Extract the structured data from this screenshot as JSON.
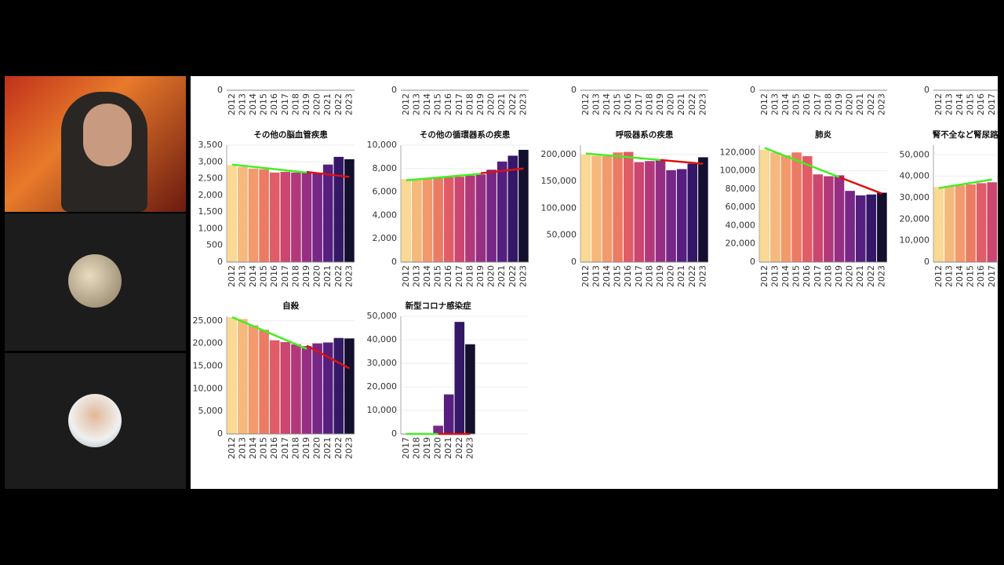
{
  "chart_data": [
    {
      "type": "bar",
      "categories": [
        "2012",
        "2013",
        "2014",
        "2015",
        "2016",
        "2017",
        "2018",
        "2019",
        "2020",
        "2021",
        "2022",
        "2023"
      ],
      "yticks": [
        0
      ]
    },
    {
      "type": "bar",
      "categories": [
        "2012",
        "2013",
        "2014",
        "2015",
        "2016",
        "2017",
        "2018",
        "2019",
        "2020",
        "2021",
        "2022",
        "2023"
      ],
      "yticks": [
        0
      ]
    },
    {
      "type": "bar",
      "categories": [
        "2012",
        "2013",
        "2014",
        "2015",
        "2016",
        "2017",
        "2018",
        "2019",
        "2020",
        "2021",
        "2022",
        "2023"
      ],
      "yticks": [
        0
      ]
    },
    {
      "type": "bar",
      "categories": [
        "2012",
        "2013",
        "2014",
        "2015",
        "2016",
        "2017",
        "2018",
        "2019",
        "2020",
        "2021",
        "2022",
        "2023"
      ],
      "yticks": [
        0
      ]
    },
    {
      "type": "bar",
      "categories": [
        "2012",
        "2013",
        "2014",
        "2015",
        "2016",
        "2017"
      ],
      "yticks": [
        0
      ]
    },
    {
      "type": "bar",
      "title": "その他の脳血管疾患",
      "categories": [
        "2012",
        "2013",
        "2014",
        "2015",
        "2016",
        "2017",
        "2018",
        "2019",
        "2020",
        "2021",
        "2022",
        "2023"
      ],
      "values": [
        2900,
        2850,
        2800,
        2780,
        2680,
        2700,
        2680,
        2700,
        2680,
        2920,
        3150,
        3080
      ],
      "colors": [
        "#f9d993",
        "#f6b97c",
        "#f29a6b",
        "#ec7b63",
        "#e05c66",
        "#cc466f",
        "#b3387a",
        "#962e82",
        "#772786",
        "#561f7f",
        "#341767",
        "#13102e"
      ],
      "ylim": [
        0,
        3500
      ],
      "yticks": [
        0,
        500,
        {
          "value": 1000,
          "label": "1,000"
        },
        {
          "value": 1500,
          "label": "1,500"
        },
        {
          "value": 2000,
          "label": "2,000"
        },
        {
          "value": 2500,
          "label": "2,500"
        },
        {
          "value": 3000,
          "label": "3,000"
        },
        {
          "value": 3500,
          "label": "3,500"
        }
      ],
      "grid": true,
      "trends": [
        {
          "color": "#44ee22",
          "x": [
            "2012",
            "2019"
          ],
          "values": [
            2920,
            2680
          ]
        },
        {
          "color": "#dd1111",
          "x": [
            "2019",
            "2023"
          ],
          "values": [
            2700,
            2550
          ]
        }
      ]
    },
    {
      "type": "bar",
      "title": "その他の循環器系の疾患",
      "categories": [
        "2012",
        "2013",
        "2014",
        "2015",
        "2016",
        "2017",
        "2018",
        "2019",
        "2020",
        "2021",
        "2022",
        "2023"
      ],
      "values": [
        7100,
        7100,
        7150,
        7200,
        7250,
        7300,
        7400,
        7500,
        7900,
        8600,
        9100,
        9600
      ],
      "colors": [
        "#f9d993",
        "#f6b97c",
        "#f29a6b",
        "#ec7b63",
        "#e05c66",
        "#cc466f",
        "#b3387a",
        "#962e82",
        "#772786",
        "#561f7f",
        "#341767",
        "#13102e"
      ],
      "ylim": [
        0,
        10000
      ],
      "yticks": [
        0,
        {
          "value": 2000,
          "label": "2,000"
        },
        {
          "value": 4000,
          "label": "4,000"
        },
        {
          "value": 6000,
          "label": "6,000"
        },
        {
          "value": 8000,
          "label": "8,000"
        },
        {
          "value": 10000,
          "label": "10,000"
        }
      ],
      "grid": true,
      "trends": [
        {
          "color": "#44ee22",
          "x": [
            "2012",
            "2019"
          ],
          "values": [
            7000,
            7550
          ]
        },
        {
          "color": "#dd1111",
          "x": [
            "2019",
            "2023"
          ],
          "values": [
            7600,
            8000
          ]
        }
      ]
    },
    {
      "type": "bar",
      "title": "呼吸器系の疾患",
      "categories": [
        "2012",
        "2013",
        "2014",
        "2015",
        "2016",
        "2017",
        "2018",
        "2019",
        "2020",
        "2021",
        "2022",
        "2023"
      ],
      "values": [
        200000,
        198000,
        197000,
        204000,
        205000,
        186000,
        188000,
        189000,
        171000,
        173000,
        183000,
        195000
      ],
      "colors": [
        "#f9d993",
        "#f6b97c",
        "#f29a6b",
        "#ec7b63",
        "#e05c66",
        "#cc466f",
        "#b3387a",
        "#962e82",
        "#772786",
        "#561f7f",
        "#341767",
        "#13102e"
      ],
      "ylim": [
        0,
        217500
      ],
      "yticks": [
        0,
        {
          "value": 50000,
          "label": "50,000"
        },
        {
          "value": 100000,
          "label": "100,000"
        },
        {
          "value": 150000,
          "label": "150,000"
        },
        {
          "value": 200000,
          "label": "200,000"
        }
      ],
      "grid": true,
      "trends": [
        {
          "color": "#44ee22",
          "x": [
            "2012",
            "2019"
          ],
          "values": [
            202000,
            190000
          ]
        },
        {
          "color": "#dd1111",
          "x": [
            "2019",
            "2023"
          ],
          "values": [
            190000,
            183000
          ]
        }
      ]
    },
    {
      "type": "bar",
      "title": "肺炎",
      "categories": [
        "2012",
        "2013",
        "2014",
        "2015",
        "2016",
        "2017",
        "2018",
        "2019",
        "2020",
        "2021",
        "2022",
        "2023"
      ],
      "values": [
        123000,
        120000,
        117000,
        120000,
        116000,
        96000,
        94000,
        95000,
        78000,
        73000,
        74000,
        76000
      ],
      "colors": [
        "#f9d993",
        "#f6b97c",
        "#f29a6b",
        "#ec7b63",
        "#e05c66",
        "#cc466f",
        "#b3387a",
        "#962e82",
        "#772786",
        "#561f7f",
        "#341767",
        "#13102e"
      ],
      "ylim": [
        0,
        128000
      ],
      "yticks": [
        0,
        {
          "value": 20000,
          "label": "20,000"
        },
        {
          "value": 40000,
          "label": "40,000"
        },
        {
          "value": 60000,
          "label": "60,000"
        },
        {
          "value": 80000,
          "label": "80,000"
        },
        {
          "value": 100000,
          "label": "100,000"
        },
        {
          "value": 120000,
          "label": "120,000"
        }
      ],
      "grid": true,
      "trends": [
        {
          "color": "#44ee22",
          "x": [
            "2012",
            "2019"
          ],
          "values": [
            125000,
            93000
          ]
        },
        {
          "color": "#dd1111",
          "x": [
            "2019",
            "2023"
          ],
          "values": [
            93000,
            75000
          ]
        }
      ]
    },
    {
      "type": "bar",
      "title": "腎不全など腎尿路",
      "categories": [
        "2012",
        "2013",
        "2014",
        "2015",
        "2016",
        "2017"
      ],
      "values": [
        35000,
        35300,
        35800,
        36200,
        36800,
        37200
      ],
      "colors": [
        "#f9d993",
        "#f6b97c",
        "#f29a6b",
        "#ec7b63",
        "#e05c66",
        "#cc466f"
      ],
      "ylim": [
        0,
        54500
      ],
      "yticks": [
        0,
        {
          "value": 10000,
          "label": "10,000"
        },
        {
          "value": 20000,
          "label": "20,000"
        },
        {
          "value": 30000,
          "label": "30,000"
        },
        {
          "value": 40000,
          "label": "40,000"
        },
        {
          "value": 50000,
          "label": "50,000"
        }
      ],
      "grid": true,
      "trends": [
        {
          "color": "#44ee22",
          "x": [
            "2012",
            "2017"
          ],
          "values": [
            34500,
            38500
          ]
        }
      ]
    },
    {
      "type": "bar",
      "title": "自殺",
      "categories": [
        "2012",
        "2013",
        "2014",
        "2015",
        "2016",
        "2017",
        "2018",
        "2019",
        "2020",
        "2021",
        "2022",
        "2023"
      ],
      "values": [
        25800,
        25400,
        24000,
        23000,
        20700,
        20300,
        19800,
        19400,
        20000,
        20200,
        21200,
        21100
      ],
      "colors": [
        "#f9d993",
        "#f6b97c",
        "#f29a6b",
        "#ec7b63",
        "#e05c66",
        "#cc466f",
        "#b3387a",
        "#962e82",
        "#772786",
        "#561f7f",
        "#341767",
        "#13102e"
      ],
      "ylim": [
        0,
        26000
      ],
      "yticks": [
        0,
        {
          "value": 5000,
          "label": "5,000"
        },
        {
          "value": 10000,
          "label": "10,000"
        },
        {
          "value": 15000,
          "label": "15,000"
        },
        {
          "value": 20000,
          "label": "20,000"
        },
        {
          "value": 25000,
          "label": "25,000"
        }
      ],
      "grid": true,
      "trends": [
        {
          "color": "#44ee22",
          "x": [
            "2012",
            "2019"
          ],
          "values": [
            25800,
            18800
          ]
        },
        {
          "color": "#dd1111",
          "x": [
            "2019",
            "2023"
          ],
          "values": [
            19500,
            14500
          ]
        }
      ]
    },
    {
      "type": "bar",
      "title": "新型コロナ感染症",
      "categories": [
        "2017",
        "2018",
        "2019",
        "2020",
        "2021",
        "2022",
        "2023"
      ],
      "values": [
        0,
        0,
        0,
        3500,
        16800,
        47600,
        38100
      ],
      "colors": [
        "#cc466f",
        "#b3387a",
        "#962e82",
        "#772786",
        "#561f7f",
        "#341767",
        "#13102e"
      ],
      "ylim": [
        0,
        50000
      ],
      "yticks": [
        0,
        {
          "value": 10000,
          "label": "10,000"
        },
        {
          "value": 20000,
          "label": "20,000"
        },
        {
          "value": 30000,
          "label": "30,000"
        },
        {
          "value": 40000,
          "label": "40,000"
        },
        {
          "value": 50000,
          "label": "50,000"
        }
      ],
      "grid": true,
      "trends": [
        {
          "color": "#44ee22",
          "x": [
            "2017",
            "2020"
          ],
          "values": [
            0,
            0
          ]
        },
        {
          "color": "#dd1111",
          "x": [
            "2020",
            "2023"
          ],
          "values": [
            0,
            0
          ]
        }
      ]
    }
  ]
}
